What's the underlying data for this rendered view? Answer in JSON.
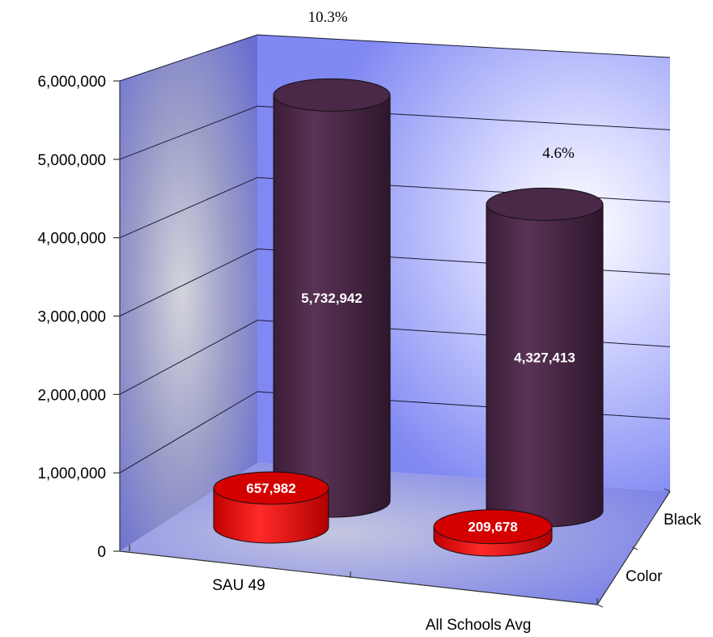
{
  "chart_data": {
    "type": "bar",
    "style": "3d-cylinder",
    "categories": [
      "SAU 49",
      "All Schools Avg"
    ],
    "series": [
      {
        "name": "Color",
        "values": [
          657982,
          209678
        ],
        "color": "#ee1111"
      },
      {
        "name": "Black",
        "values": [
          5732942,
          4327413
        ],
        "color": "#4a2848"
      }
    ],
    "value_labels": {
      "Color": [
        "657,982",
        "209,678"
      ],
      "Black": [
        "5,732,942",
        "4,327,413"
      ]
    },
    "annotations": [
      "10.3%",
      "4.6%"
    ],
    "y_ticks": [
      "0",
      "1,000,000",
      "2,000,000",
      "3,000,000",
      "4,000,000",
      "5,000,000",
      "6,000,000"
    ],
    "ylim": [
      0,
      6000000
    ],
    "depth_labels": [
      "Color",
      "Black"
    ],
    "grid": true,
    "wall_color": "#8a8ef5",
    "floor_color": "#7f84ea"
  }
}
